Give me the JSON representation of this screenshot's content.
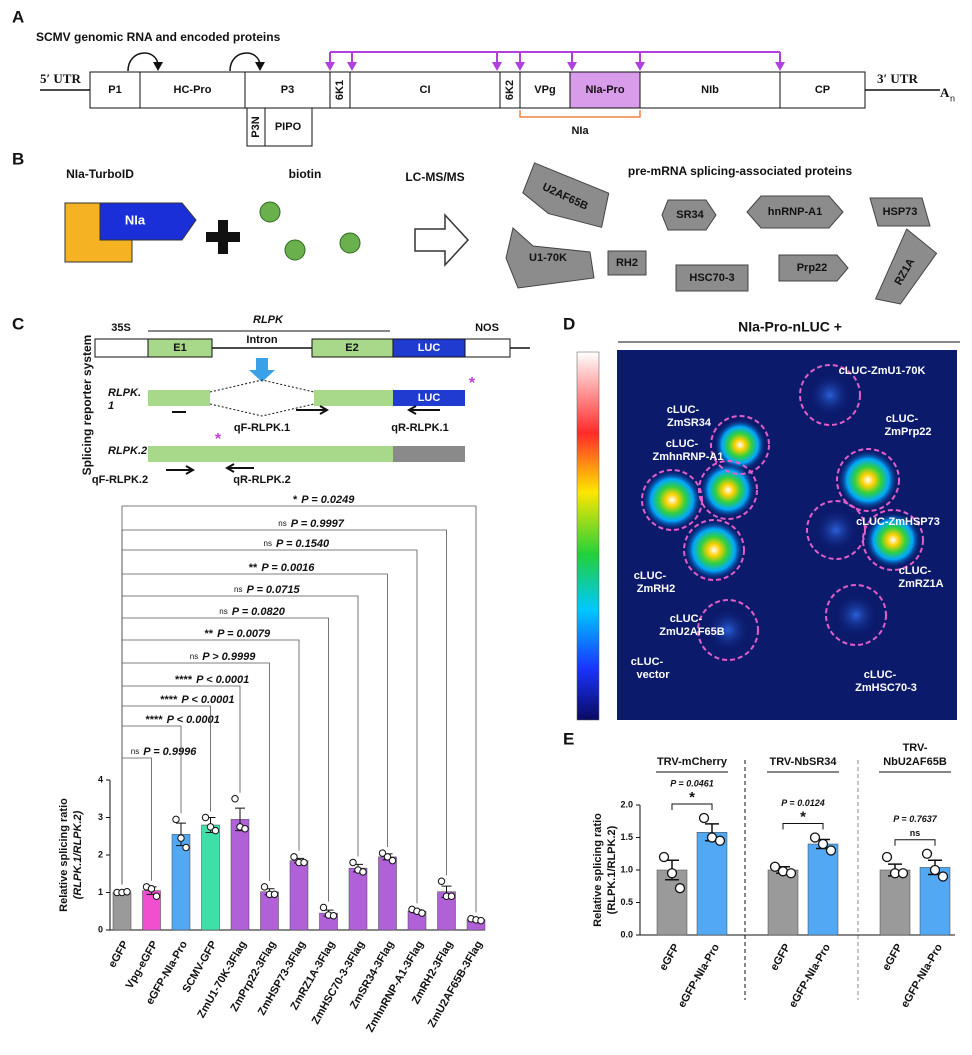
{
  "panels": {
    "A": {
      "letter": "A",
      "title": "SCMV genomic RNA and encoded proteins",
      "utr5": "5′ UTR",
      "utr3": "3′ UTR",
      "polyA": "A",
      "polyA_sub": "n",
      "proteins": [
        "P1",
        "HC-Pro",
        "P3",
        "6K1",
        "CI",
        "6K2",
        "VPg",
        "NIa-Pro",
        "NIb",
        "CP"
      ],
      "frameshift": [
        "P3N",
        "PIPO"
      ],
      "nia": "NIa"
    },
    "B": {
      "letter": "B",
      "bait": "NIa-TurboID",
      "bait_label": "NIa",
      "substrate": "biotin",
      "method": "LC-MS/MS",
      "result_title": "pre-mRNA splicing-associated proteins",
      "proteins": [
        "U2AF65B",
        "SR34",
        "hnRNP-A1",
        "HSP73",
        "U1-70K",
        "RH2",
        "HSC70-3",
        "Prp22",
        "RZ1A"
      ]
    },
    "C": {
      "letter": "C",
      "side_label": "Splicing reporter system",
      "construct": {
        "promoter": "35S",
        "gene": "RLPK",
        "exon1": "E1",
        "intron": "Intron",
        "exon2": "E2",
        "reporter": "LUC",
        "terminator": "NOS"
      },
      "isoform1": {
        "name": [
          "RLPK.",
          "1"
        ],
        "reporter": "LUC",
        "marker": "*",
        "fwd": "qF-RLPK.1",
        "rev": "qR-RLPK.1"
      },
      "isoform2": {
        "name": "RLPK.2",
        "marker": "*",
        "fwd": "qF-RLPK.2",
        "rev": "qR-RLPK.2"
      }
    },
    "D": {
      "letter": "D",
      "title": "NIa-Pro-nLUC +",
      "labels": [
        [
          "cLUC-ZmU1-70K"
        ],
        [
          "cLUC-",
          "ZmSR34"
        ],
        [
          "cLUC-",
          "ZmPrp22"
        ],
        [
          "cLUC-",
          "ZmhnRNP-A1"
        ],
        [
          "cLUC-ZmHSP73"
        ],
        [
          "cLUC-",
          "ZmRH2"
        ],
        [
          "cLUC-",
          "ZmU2AF65B"
        ],
        [
          "cLUC-",
          "ZmRZ1A"
        ],
        [
          "cLUC-",
          "vector"
        ],
        [
          "cLUC-",
          "ZmHSC70-3"
        ]
      ]
    },
    "E": {
      "letter": "E"
    }
  },
  "chart_data": [
    {
      "type": "bar",
      "ylabel": [
        "Relative splicing ratio",
        "(RLPK.1/RLPK.2)"
      ],
      "categories": [
        "eGFP",
        "Vpg-eGFP",
        "eGFP-NIa-Pro",
        "SCMV-GFP",
        "ZmU1-70K-3Flag",
        "ZmPrp22-3Flag",
        "ZmHSP73-3Flag",
        "ZmRZ1A-3Flag",
        "ZmHSC70-3-3Flag",
        "ZmSR34-3Flag",
        "ZmhnRNP-A1-3Flag",
        "ZmRH2-3Flag",
        "ZmU2AF65B-3Flag"
      ],
      "values": [
        1.0,
        1.05,
        2.55,
        2.8,
        2.95,
        1.02,
        1.85,
        0.45,
        1.65,
        1.95,
        0.5,
        1.02,
        0.28
      ],
      "errors": [
        0.02,
        0.1,
        0.3,
        0.2,
        0.3,
        0.08,
        0.06,
        0.08,
        0.1,
        0.08,
        0.04,
        0.15,
        0.03
      ],
      "points": [
        [
          1.0,
          1.0,
          1.02
        ],
        [
          1.15,
          1.1,
          0.9
        ],
        [
          2.95,
          2.45,
          2.2
        ],
        [
          3.0,
          2.75,
          2.65
        ],
        [
          3.5,
          2.75,
          2.7
        ],
        [
          1.15,
          0.95,
          0.95
        ],
        [
          1.95,
          1.8,
          1.8
        ],
        [
          0.6,
          0.4,
          0.38
        ],
        [
          1.8,
          1.6,
          1.55
        ],
        [
          2.05,
          1.95,
          1.85
        ],
        [
          0.55,
          0.5,
          0.45
        ],
        [
          1.3,
          0.9,
          0.9
        ],
        [
          0.3,
          0.27,
          0.25
        ]
      ],
      "colors": [
        "#9a9a9a",
        "#f24fd0",
        "#52a8f2",
        "#3fe0a8",
        "#b061d8",
        "#b061d8",
        "#b061d8",
        "#b061d8",
        "#b061d8",
        "#b061d8",
        "#b061d8",
        "#b061d8",
        "#b061d8"
      ],
      "ylim": [
        0,
        4
      ],
      "yticks": [
        0,
        1,
        2,
        3,
        4
      ],
      "significance": [
        null,
        {
          "mark": "ns",
          "p": "P = 0.9996"
        },
        {
          "mark": "****",
          "p": "P < 0.0001"
        },
        {
          "mark": "****",
          "p": "P < 0.0001"
        },
        {
          "mark": "****",
          "p": "P < 0.0001"
        },
        {
          "mark": "ns",
          "p": "P > 0.9999"
        },
        {
          "mark": "**",
          "p": "P = 0.0079"
        },
        {
          "mark": "ns",
          "p": "P = 0.0820"
        },
        {
          "mark": "ns",
          "p": "P = 0.0715"
        },
        {
          "mark": "**",
          "p": "P = 0.0016"
        },
        {
          "mark": "ns",
          "p": "P = 0.1540"
        },
        {
          "mark": "ns",
          "p": "P = 0.9997"
        },
        {
          "mark": "*",
          "p": "P = 0.0249"
        }
      ]
    },
    {
      "type": "grouped_bar",
      "ylabel": [
        "Relative splicing ratio",
        "(RLPK.1/RLPK.2)"
      ],
      "colors": [
        "#9a9a9a",
        "#52a8f2"
      ],
      "ylim": [
        0,
        2
      ],
      "yticks": [
        {
          "value": 0,
          "label": "0.0"
        },
        {
          "value": 0.5,
          "label": "0.5"
        },
        {
          "value": 1,
          "label": "1.0"
        },
        {
          "value": 1.5,
          "label": "1.5"
        },
        {
          "value": 2,
          "label": "2.0"
        }
      ],
      "groups": [
        {
          "title": [
            "TRV-mCherry"
          ],
          "categories": [
            "eGFP",
            "eGFP-NIa-Pro"
          ],
          "values": [
            1.0,
            1.58
          ],
          "errors": [
            0.15,
            0.13
          ],
          "points": [
            [
              1.2,
              0.95,
              0.72
            ],
            [
              1.8,
              1.5,
              1.45
            ]
          ],
          "p": "P = 0.0461",
          "mark": "*"
        },
        {
          "title": [
            "TRV-NbSR34"
          ],
          "categories": [
            "eGFP",
            "eGFP-NIa-Pro"
          ],
          "values": [
            1.0,
            1.4
          ],
          "errors": [
            0.05,
            0.07
          ],
          "points": [
            [
              1.05,
              0.98,
              0.95
            ],
            [
              1.5,
              1.4,
              1.3
            ]
          ],
          "p": "P = 0.0124",
          "mark": "*"
        },
        {
          "title": [
            "TRV-",
            "NbU2AF65B"
          ],
          "categories": [
            "eGFP",
            "eGFP-NIa-Pro"
          ],
          "values": [
            1.0,
            1.04
          ],
          "errors": [
            0.09,
            0.11
          ],
          "points": [
            [
              1.2,
              0.95,
              0.95
            ],
            [
              1.25,
              1.0,
              0.9
            ]
          ],
          "p": "P = 0.7637",
          "mark": "ns"
        }
      ]
    }
  ]
}
